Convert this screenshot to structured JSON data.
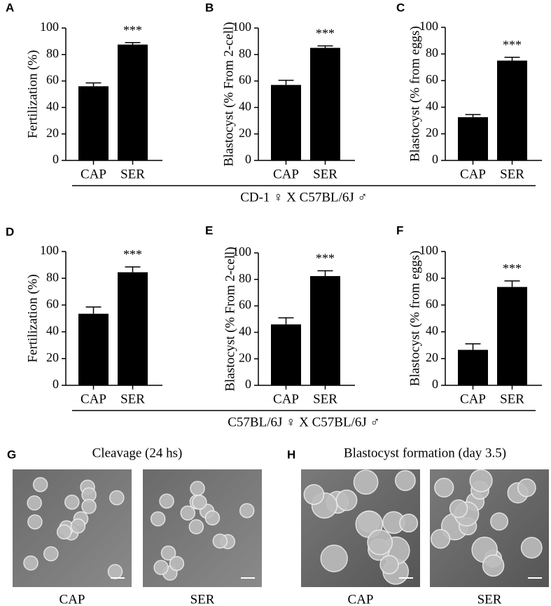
{
  "chart_data": [
    {
      "type": "bar",
      "panel": "A",
      "ylabel": "Fertilization (%)",
      "categories": [
        "CAP",
        "SER"
      ],
      "values": [
        56,
        87.5
      ],
      "errors": [
        2.5,
        1.5
      ],
      "annotation": "***",
      "color": "#000000",
      "ylim": [
        0,
        100
      ],
      "yticks": [
        0,
        20,
        40,
        60,
        80,
        100
      ]
    },
    {
      "type": "bar",
      "panel": "B",
      "ylabel": "Blastocyst (% From 2-cell)",
      "categories": [
        "CAP",
        "SER"
      ],
      "values": [
        57,
        85
      ],
      "errors": [
        3.5,
        1.5
      ],
      "annotation": "***",
      "color": "#000000",
      "ylim": [
        0,
        100
      ],
      "yticks": [
        0,
        20,
        40,
        60,
        80,
        100
      ]
    },
    {
      "type": "bar",
      "panel": "C",
      "ylabel": "Blastocyst (% from eggs)",
      "categories": [
        "CAP",
        "SER"
      ],
      "values": [
        32.5,
        75
      ],
      "errors": [
        2,
        2.5
      ],
      "annotation": "***",
      "color": "#000000",
      "ylim": [
        0,
        100
      ],
      "yticks": [
        0,
        20,
        40,
        60,
        80,
        100
      ]
    },
    {
      "type": "bar",
      "panel": "D",
      "ylabel": "Fertilization (%)",
      "categories": [
        "CAP",
        "SER"
      ],
      "values": [
        53.5,
        84.5
      ],
      "errors": [
        5,
        4
      ],
      "annotation": "***",
      "color": "#000000",
      "ylim": [
        0,
        100
      ],
      "yticks": [
        0,
        20,
        40,
        60,
        80,
        100
      ]
    },
    {
      "type": "bar",
      "panel": "E",
      "ylabel": "Blastocyst (% From 2-cell)",
      "categories": [
        "CAP",
        "SER"
      ],
      "values": [
        46,
        82.5
      ],
      "errors": [
        5,
        4
      ],
      "annotation": "***",
      "color": "#000000",
      "ylim": [
        0,
        100
      ],
      "yticks": [
        0,
        20,
        40,
        60,
        80,
        100
      ]
    },
    {
      "type": "bar",
      "panel": "F",
      "ylabel": "Blastocyst (% from eggs)",
      "categories": [
        "CAP",
        "SER"
      ],
      "values": [
        26.5,
        73.5
      ],
      "errors": [
        4.5,
        4.5
      ],
      "annotation": "***",
      "color": "#000000",
      "ylim": [
        0,
        100
      ],
      "yticks": [
        0,
        20,
        40,
        60,
        80,
        100
      ]
    }
  ],
  "groups": [
    "CD-1 ♀ X C57BL/6J ♂",
    "C57BL/6J ♀ X C57BL/6J ♂"
  ],
  "images": [
    {
      "panel": "G",
      "title": "Cleavage (24 hs)",
      "labels": [
        "CAP",
        "SER"
      ]
    },
    {
      "panel": "H",
      "title": "Blastocyst formation (day 3.5)",
      "labels": [
        "CAP",
        "SER"
      ]
    }
  ]
}
